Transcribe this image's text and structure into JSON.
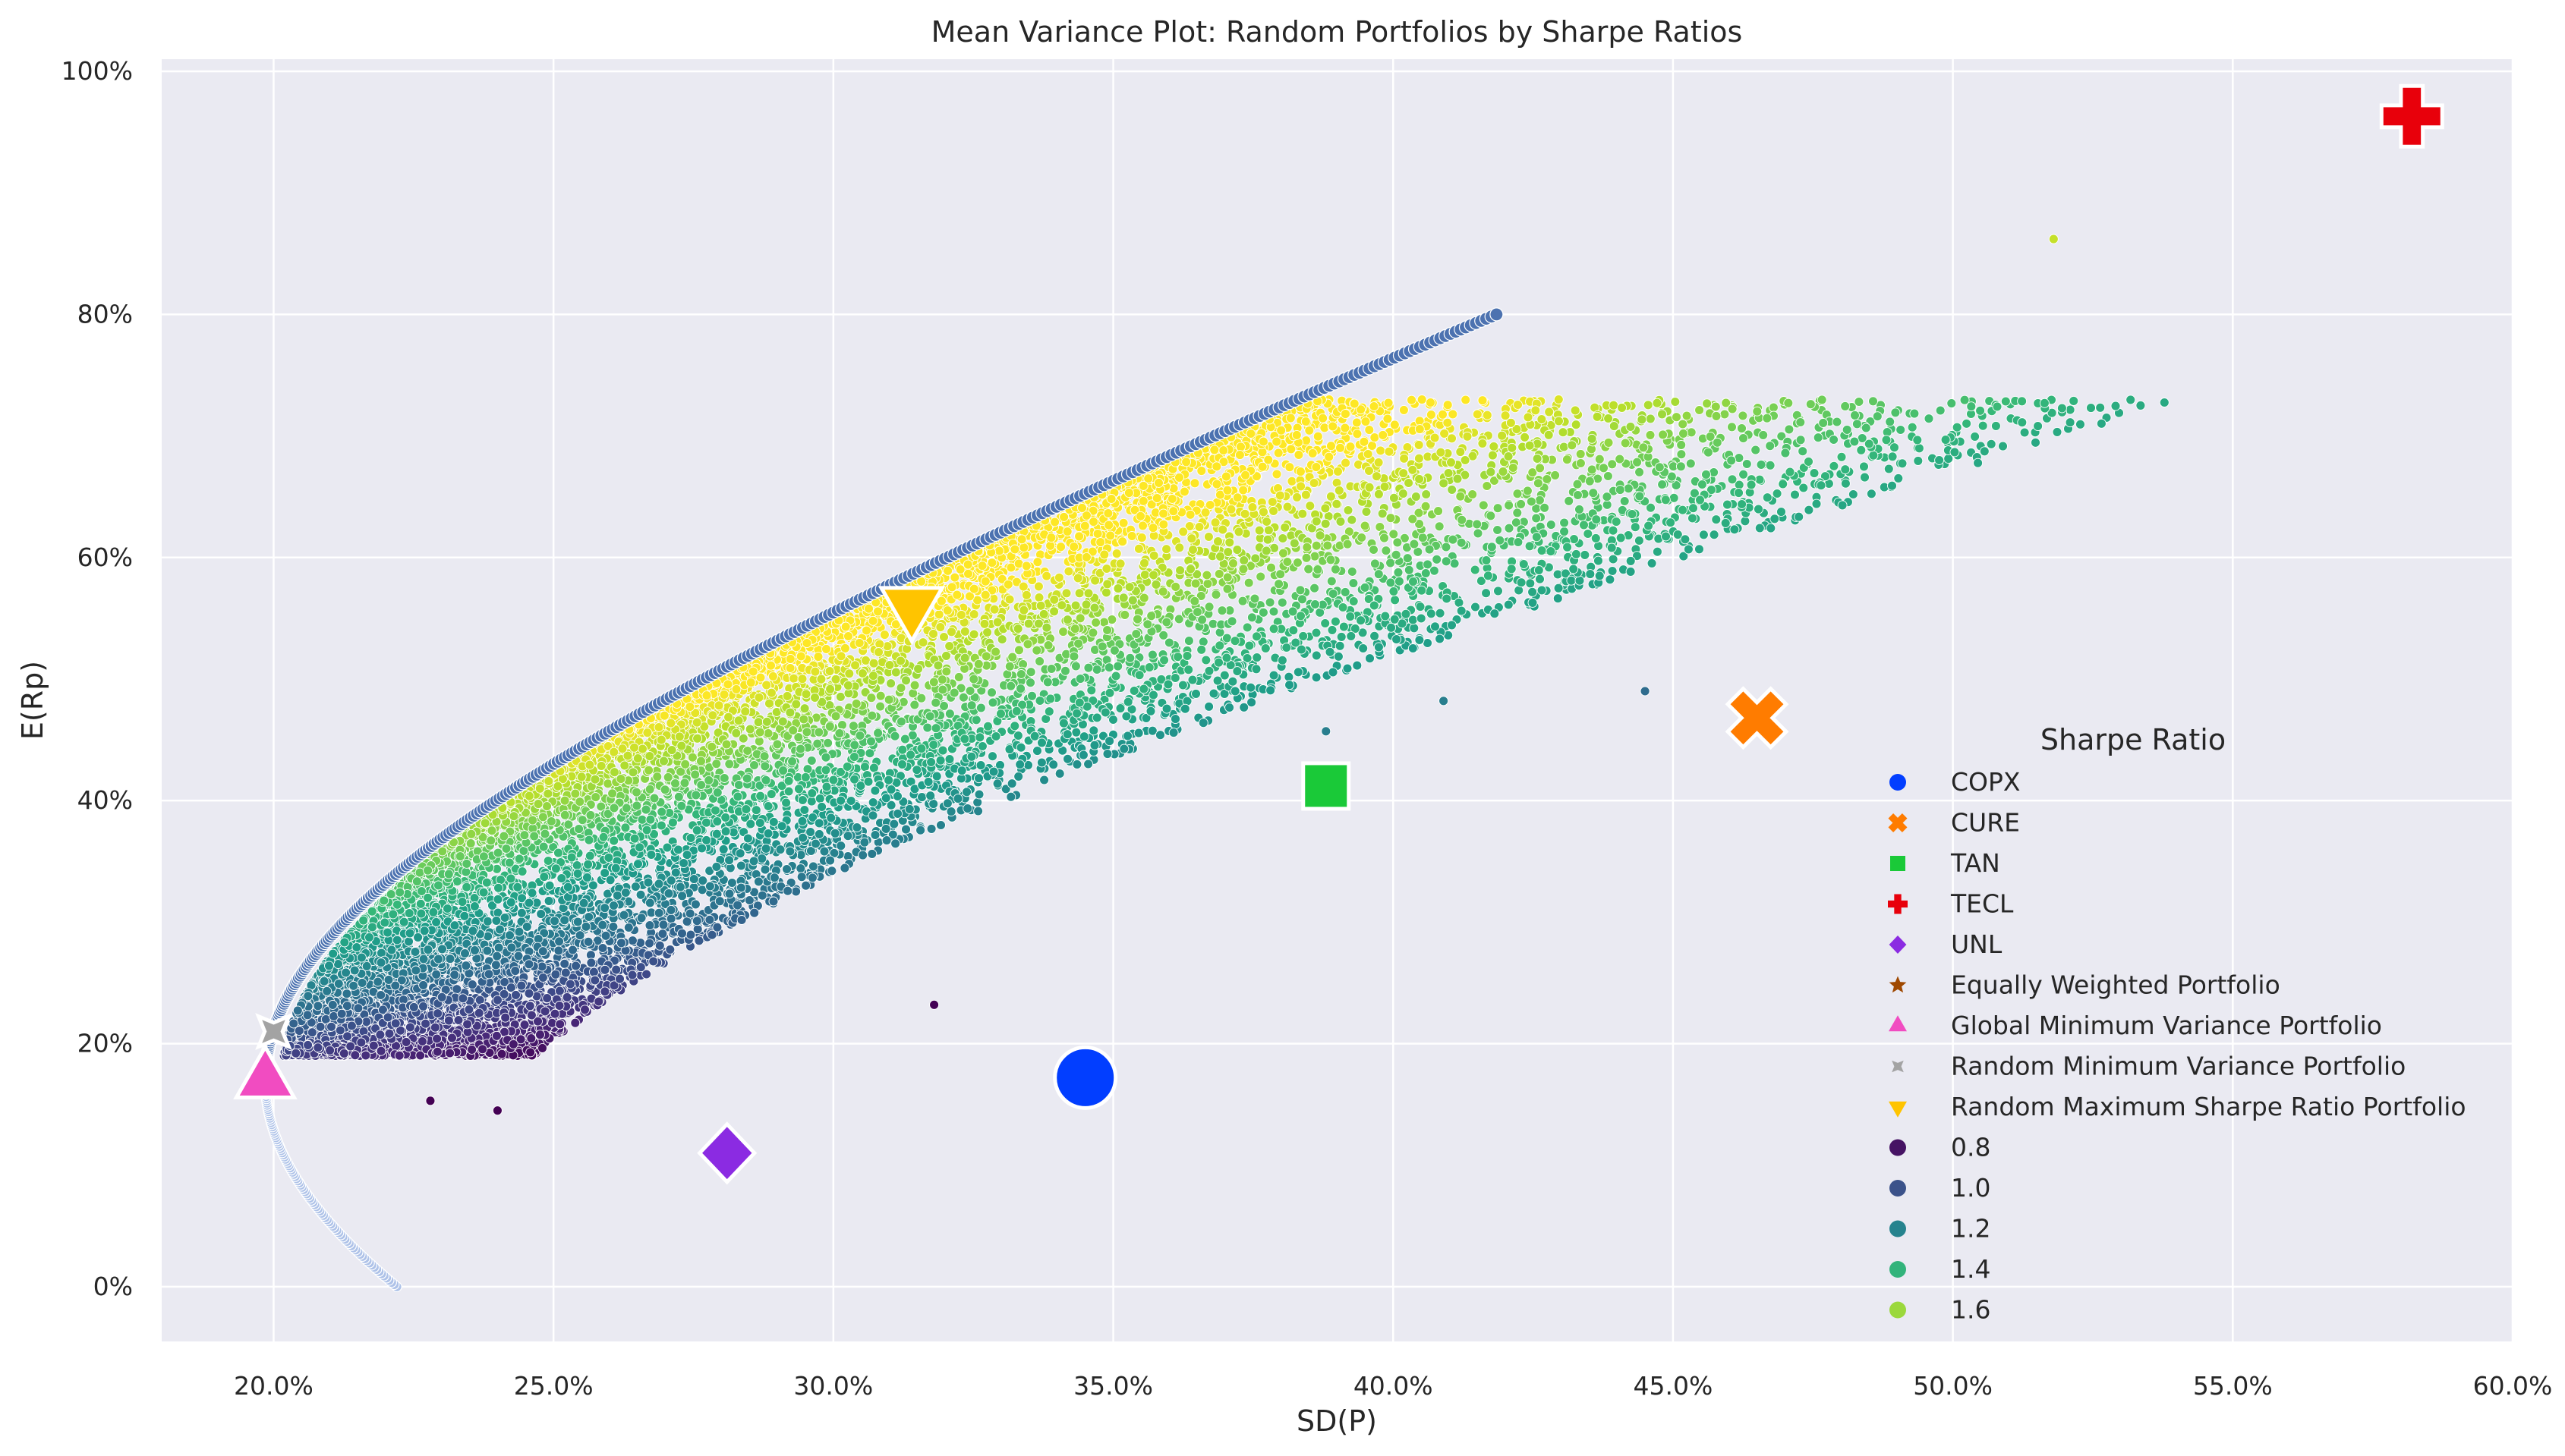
{
  "chart_data": {
    "type": "scatter",
    "title": "Mean Variance Plot: Random Portfolios by Sharpe Ratios",
    "xlabel": "SD(P)",
    "ylabel": "E(Rp)",
    "xlim": [
      0.18,
      0.6
    ],
    "ylim": [
      -0.045,
      1.01
    ],
    "x_ticks": [
      0.2,
      0.25,
      0.3,
      0.35,
      0.4,
      0.45,
      0.5,
      0.55,
      0.6
    ],
    "x_tick_labels": [
      "20.0%",
      "25.0%",
      "30.0%",
      "35.0%",
      "40.0%",
      "45.0%",
      "50.0%",
      "55.0%",
      "60.0%"
    ],
    "y_ticks": [
      0.0,
      0.2,
      0.4,
      0.6,
      0.8,
      1.0
    ],
    "y_tick_labels": [
      "0%",
      "20%",
      "40%",
      "60%",
      "80%",
      "100%"
    ],
    "grid": true,
    "legend_title": "Sharpe Ratio",
    "legend_position": "lower-right",
    "efficient_frontier": {
      "color": "#4c72b0",
      "gmv_point": [
        0.1985,
        0.17
      ],
      "lower_end": [
        0.222,
        0.0
      ],
      "upper_end": [
        0.418,
        0.8
      ]
    },
    "random_portfolios": {
      "colormap": "viridis",
      "sharpe_range": [
        0.75,
        1.75
      ],
      "approx_count": 10000,
      "outliers": [
        {
          "x": 0.518,
          "y": 0.862
        },
        {
          "x": 0.445,
          "y": 0.49
        },
        {
          "x": 0.24,
          "y": 0.145
        },
        {
          "x": 0.228,
          "y": 0.153
        },
        {
          "x": 0.318,
          "y": 0.232
        },
        {
          "x": 0.388,
          "y": 0.457
        },
        {
          "x": 0.409,
          "y": 0.482
        }
      ]
    },
    "assets": [
      {
        "name": "COPX",
        "x": 0.345,
        "y": 0.172,
        "marker": "circle",
        "color": "#023eff"
      },
      {
        "name": "CURE",
        "x": 0.465,
        "y": 0.468,
        "marker": "x",
        "color": "#ff7c00"
      },
      {
        "name": "TAN",
        "x": 0.388,
        "y": 0.412,
        "marker": "square",
        "color": "#1ac938"
      },
      {
        "name": "TECL",
        "x": 0.582,
        "y": 0.963,
        "marker": "plus",
        "color": "#e8000b"
      },
      {
        "name": "UNL",
        "x": 0.281,
        "y": 0.11,
        "marker": "diamond",
        "color": "#8b2be2"
      }
    ],
    "portfolios": [
      {
        "name": "Equally Weighted Portfolio",
        "marker": "star",
        "color": "#9f4800"
      },
      {
        "name": "Global Minimum Variance Portfolio",
        "x": 0.1985,
        "y": 0.17,
        "marker": "triangle-up",
        "color": "#f14cc1"
      },
      {
        "name": "Random Minimum Variance Portfolio",
        "x": 0.2,
        "y": 0.21,
        "marker": "x-star",
        "color": "#a3a3a3"
      },
      {
        "name": "Random Maximum Sharpe Ratio Portfolio",
        "x": 0.314,
        "y": 0.56,
        "marker": "triangle-down",
        "color": "#ffc400"
      }
    ],
    "sharpe_legend": [
      {
        "label": "0.8",
        "value": 0.8
      },
      {
        "label": "1.0",
        "value": 1.0
      },
      {
        "label": "1.2",
        "value": 1.2
      },
      {
        "label": "1.4",
        "value": 1.4
      },
      {
        "label": "1.6",
        "value": 1.6
      }
    ]
  }
}
